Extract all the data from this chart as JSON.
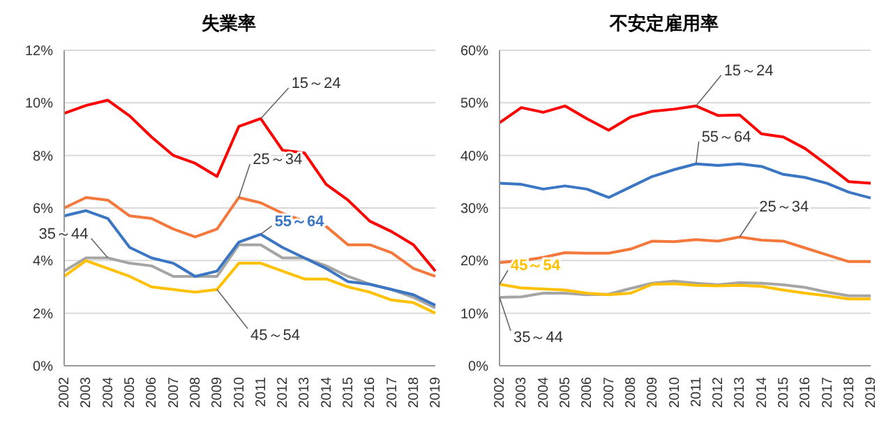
{
  "chart_data": [
    {
      "type": "line",
      "title": "失業率",
      "categories": [
        "2002",
        "2003",
        "2004",
        "2005",
        "2006",
        "2007",
        "2008",
        "2009",
        "2010",
        "2011",
        "2012",
        "2013",
        "2014",
        "2015",
        "2016",
        "2017",
        "2018",
        "2019"
      ],
      "ylim": [
        0,
        12
      ],
      "yticks": [
        {
          "value": 0,
          "label": "0%"
        },
        {
          "value": 2,
          "label": "2%"
        },
        {
          "value": 4,
          "label": "4%"
        },
        {
          "value": 6,
          "label": "6%"
        },
        {
          "value": 8,
          "label": "8%"
        },
        {
          "value": 10,
          "label": "10%"
        },
        {
          "value": 12,
          "label": "12%"
        }
      ],
      "grid": "y",
      "legend": false,
      "marker": "none",
      "line_style": "solid",
      "series": [
        {
          "name": "15～24",
          "color": "#ff0000",
          "values": [
            9.6,
            9.9,
            10.1,
            9.5,
            8.7,
            8.0,
            7.7,
            7.2,
            9.1,
            9.4,
            8.2,
            8.1,
            6.9,
            6.3,
            5.5,
            5.1,
            4.6,
            3.6
          ]
        },
        {
          "name": "25～34",
          "color": "#f4783c",
          "values": [
            6.0,
            6.4,
            6.3,
            5.7,
            5.6,
            5.2,
            4.9,
            5.2,
            6.4,
            6.2,
            5.8,
            5.5,
            5.3,
            4.6,
            4.6,
            4.3,
            3.7,
            3.4
          ]
        },
        {
          "name": "35～44",
          "color": "#a5a5a5",
          "values": [
            3.6,
            4.1,
            4.1,
            3.9,
            3.8,
            3.4,
            3.4,
            3.4,
            4.6,
            4.6,
            4.1,
            4.1,
            3.8,
            3.4,
            3.1,
            2.9,
            2.6,
            2.2
          ]
        },
        {
          "name": "45～54",
          "color": "#ffc000",
          "values": [
            3.4,
            4.0,
            3.7,
            3.4,
            3.0,
            2.9,
            2.8,
            2.9,
            3.9,
            3.9,
            3.6,
            3.3,
            3.3,
            3.0,
            2.8,
            2.5,
            2.4,
            2.0
          ]
        },
        {
          "name": "55～64",
          "color": "#3a76c4",
          "values": [
            5.7,
            5.9,
            5.6,
            4.5,
            4.1,
            3.9,
            3.4,
            3.6,
            4.7,
            5.0,
            4.5,
            4.1,
            3.7,
            3.2,
            3.1,
            2.9,
            2.7,
            2.3
          ]
        }
      ]
    },
    {
      "type": "line",
      "title": "不安定雇用率",
      "categories": [
        "2002",
        "2003",
        "2004",
        "2005",
        "2006",
        "2007",
        "2008",
        "2009",
        "2010",
        "2011",
        "2012",
        "2013",
        "2014",
        "2015",
        "2016",
        "2017",
        "2018",
        "2019"
      ],
      "ylim": [
        0,
        60
      ],
      "yticks": [
        {
          "value": 0,
          "label": "0%"
        },
        {
          "value": 10,
          "label": "10%"
        },
        {
          "value": 20,
          "label": "20%"
        },
        {
          "value": 30,
          "label": "30%"
        },
        {
          "value": 40,
          "label": "40%"
        },
        {
          "value": 50,
          "label": "50%"
        },
        {
          "value": 60,
          "label": "60%"
        }
      ],
      "grid": "y",
      "legend": false,
      "marker": "none",
      "line_style": "solid",
      "series": [
        {
          "name": "15～24",
          "color": "#ff0000",
          "values": [
            46.2,
            49.1,
            48.2,
            49.4,
            47.0,
            44.8,
            47.3,
            48.4,
            48.8,
            49.4,
            47.6,
            47.7,
            44.1,
            43.5,
            41.3,
            38.2,
            35.0,
            34.7
          ]
        },
        {
          "name": "25～34",
          "color": "#f4783c",
          "values": [
            19.6,
            20.0,
            20.6,
            21.5,
            21.4,
            21.4,
            22.2,
            23.7,
            23.6,
            24.0,
            23.7,
            24.5,
            23.9,
            23.7,
            22.4,
            21.1,
            19.8,
            19.8
          ]
        },
        {
          "name": "35～44",
          "color": "#a5a5a5",
          "values": [
            13.0,
            13.1,
            13.8,
            13.8,
            13.5,
            13.6,
            14.7,
            15.7,
            16.1,
            15.7,
            15.4,
            15.8,
            15.7,
            15.4,
            14.9,
            14.0,
            13.3,
            13.3
          ]
        },
        {
          "name": "45～54",
          "color": "#ffc000",
          "values": [
            15.5,
            14.8,
            14.6,
            14.4,
            13.8,
            13.5,
            13.8,
            15.5,
            15.6,
            15.3,
            15.2,
            15.3,
            15.1,
            14.4,
            13.8,
            13.3,
            12.7,
            12.7
          ]
        },
        {
          "name": "55～64",
          "color": "#3a76c4",
          "values": [
            34.7,
            34.5,
            33.6,
            34.2,
            33.6,
            32.0,
            34.0,
            36.0,
            37.3,
            38.4,
            38.1,
            38.4,
            37.9,
            36.4,
            35.8,
            34.7,
            33.0,
            31.9
          ]
        }
      ]
    }
  ]
}
